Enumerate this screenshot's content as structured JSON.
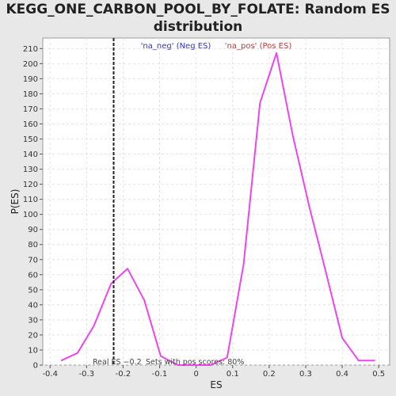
{
  "chart_data": {
    "type": "line",
    "title_line1": "KEGG_ONE_CARBON_POOL_BY_FOLATE: Random ES",
    "title_line2": "distribution",
    "xlabel": "ES",
    "ylabel": "P(ES)",
    "xlim": [
      -0.42,
      0.53
    ],
    "ylim": [
      0,
      217
    ],
    "xticks": [
      -0.4,
      -0.3,
      -0.2,
      -0.1,
      0.0,
      0.1,
      0.2,
      0.3,
      0.4,
      0.5
    ],
    "xtick_labels": [
      "-0.4",
      "-0.3",
      "-0.2",
      "-0.1",
      "0",
      "0.1",
      "0.2",
      "0.3",
      "0.4",
      "0.5"
    ],
    "yticks": [
      0,
      10,
      20,
      30,
      40,
      50,
      60,
      70,
      80,
      90,
      100,
      110,
      120,
      130,
      140,
      150,
      160,
      170,
      180,
      190,
      200,
      210
    ],
    "grid": true,
    "legend": {
      "placement": "top-center",
      "entries": [
        {
          "label": "'na_neg' (Neg ES)",
          "color": "#3333cc"
        },
        {
          "label": "'na_pos' (Pos ES)",
          "color": "#cc3333"
        }
      ]
    },
    "series": [
      {
        "color": "#ee44ee",
        "x": [
          -0.37,
          -0.325,
          -0.28,
          -0.233,
          -0.188,
          -0.142,
          -0.097,
          -0.05,
          -0.005,
          0.04,
          0.085,
          0.13,
          0.175,
          0.22,
          0.265,
          0.31,
          0.355,
          0.4,
          0.445,
          0.49
        ],
        "y": [
          3,
          8,
          26,
          54,
          64,
          43,
          6,
          0,
          0,
          0,
          5,
          67,
          174,
          207,
          152,
          105,
          62,
          18,
          3,
          3
        ]
      }
    ],
    "real_es": -0.2259,
    "annotations": {
      "real_es_label": "Real ES −0.2",
      "sets_label": "Sets with pos scores: 80%"
    }
  }
}
